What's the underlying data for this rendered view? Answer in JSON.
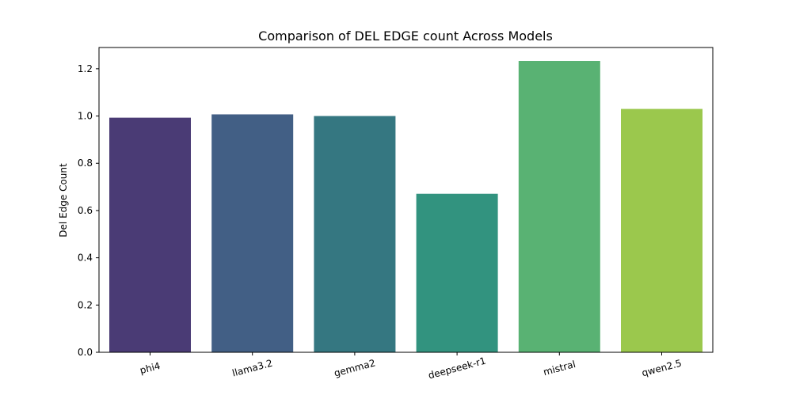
{
  "chart_data": {
    "type": "bar",
    "title": "Comparison of DEL EDGE count Across Models",
    "xlabel": "",
    "ylabel": "Del Edge Count",
    "categories": [
      "phi4",
      "llama3.2",
      "gemma2",
      "deepseek-r1",
      "mistral",
      "qwen2.5"
    ],
    "values": [
      0.993,
      1.007,
      1.0,
      0.671,
      1.233,
      1.03
    ],
    "colors": [
      "#4a3b75",
      "#425f85",
      "#357781",
      "#32937f",
      "#59b273",
      "#9bc84d"
    ],
    "ylim": [
      0,
      1.29
    ],
    "yticks": [
      0.0,
      0.2,
      0.4,
      0.6,
      0.8,
      1.0,
      1.2
    ],
    "ytick_labels": [
      "0.0",
      "0.2",
      "0.4",
      "0.6",
      "0.8",
      "1.0",
      "1.2"
    ],
    "xtick_rotation_deg": 15,
    "grid": false,
    "legend": "none"
  }
}
